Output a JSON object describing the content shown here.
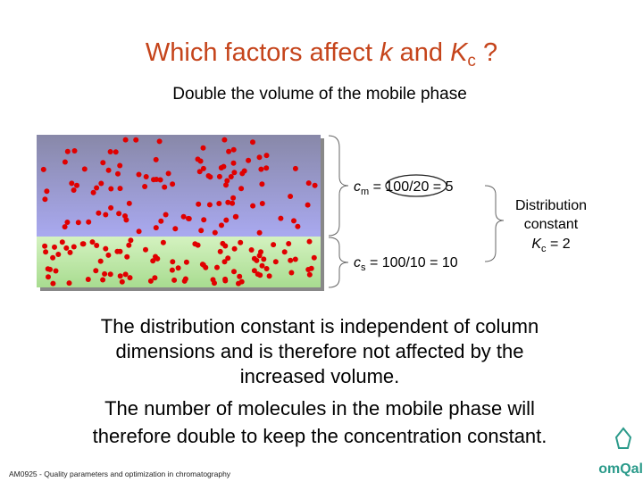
{
  "title": {
    "parts": [
      "Which factors affect ",
      "k",
      " and ",
      "K",
      "c",
      " ?"
    ]
  },
  "subtitle": "Double the volume of the mobile phase",
  "mobile_equation": {
    "symbol": "c",
    "subscript": "m",
    "rest": " = 100/20 = 5"
  },
  "stationary_equation": {
    "symbol": "c",
    "subscript": "s",
    "rest": " = 100/10 = 10"
  },
  "distribution": {
    "lines": [
      "Distribution",
      "constant"
    ],
    "symbol": "K",
    "subscript": "c",
    "rest": " = 2"
  },
  "paragraphs": [
    {
      "lines": [
        "The distribution constant is independent of column",
        "dimensions and is therefore not affected by the",
        "increased volume."
      ]
    },
    {
      "lines": [
        "The number of molecules in the mobile phase will",
        "therefore double to keep the concentration constant."
      ]
    }
  ],
  "footer": "AM0925 - Quality parameters and optimization in chromatography",
  "logo": "omQal"
}
